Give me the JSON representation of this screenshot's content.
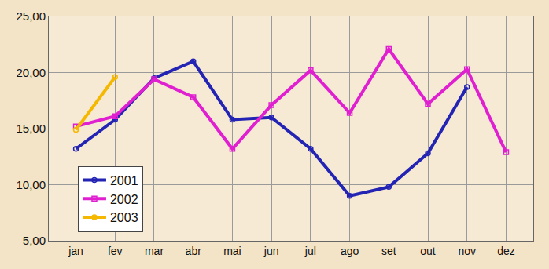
{
  "chart_data": {
    "type": "line",
    "categories": [
      "jan",
      "fev",
      "mar",
      "abr",
      "mai",
      "jun",
      "jul",
      "ago",
      "set",
      "out",
      "nov",
      "dez"
    ],
    "series": [
      {
        "name": "2001",
        "color": "#2424b4",
        "marker": "circle",
        "values": [
          13.2,
          15.8,
          19.5,
          21.0,
          15.8,
          16.0,
          13.2,
          9.0,
          9.8,
          12.8,
          18.7,
          null
        ]
      },
      {
        "name": "2002",
        "color": "#e020d0",
        "marker": "square",
        "values": [
          15.2,
          16.1,
          19.4,
          17.8,
          13.2,
          17.1,
          20.2,
          16.4,
          22.1,
          17.2,
          20.3,
          12.9
        ]
      },
      {
        "name": "2003",
        "color": "#f5b800",
        "marker": "circle",
        "values": [
          14.9,
          19.6,
          null,
          null,
          null,
          null,
          null,
          null,
          null,
          null,
          null,
          null
        ]
      }
    ],
    "ylim": [
      5,
      25
    ],
    "yticks": [
      {
        "value": 5,
        "label": "5,00"
      },
      {
        "value": 10,
        "label": "10,00"
      },
      {
        "value": 15,
        "label": "15,00"
      },
      {
        "value": 20,
        "label": "20,00"
      },
      {
        "value": 25,
        "label": "25,00"
      }
    ],
    "grid": true,
    "legend": "lower left"
  }
}
